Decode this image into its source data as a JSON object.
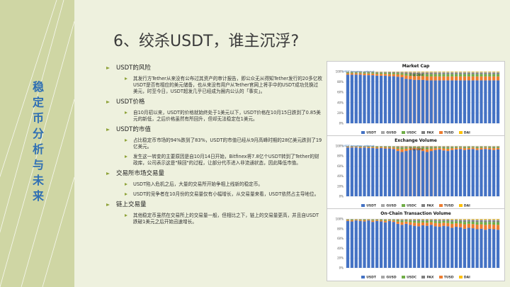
{
  "slide": {
    "title": "6、绞杀USDT，谁主沉浮?",
    "side_title_chars": [
      "稳",
      "定",
      "币",
      "分",
      "析",
      "与",
      "未",
      "来"
    ],
    "accent_color": "#2f6fb3",
    "bullet_color": "#8fa33a"
  },
  "sections": [
    {
      "heading": "USDT的风险",
      "items": [
        "其发行方Tether从来没有公布过其资产的审计报告，即公众无从得知Tether发行的20多亿枚USDT是否有相应的美元储备，也从来没有用户从Tether官网上将手中的USDT成功兑换过美元，时至今日，USDT超发几乎已经成为圈内公认的「事实」。"
      ]
    },
    {
      "heading": "USDT价格",
      "items": [
        "自10月初以来，USDT的价格就始终处于1美元以下，USDT价格在10月15日跌到了0.85美元的新低，之后价格虽然有所回升，但却无法稳定在1美元。"
      ]
    },
    {
      "heading": "USDT的市值",
      "items": [
        "占比稳定币市场的94%跌到了83%，USDT的市值已经从9月高峰时期的28亿美元跌到了19亿美元。",
        "发生这一转变的主要原因是自10月14日开始，Bitfinex将7.8亿个USDT转到了Tether的财政库，公司表示这是\"赎回\"的过程，让部分代币进入非流通状态，因此降低市值。"
      ]
    },
    {
      "heading": "交易所市场交易量",
      "items": [
        "USDT陷入危机之后，大量的交易所开始争相上线新的稳定币。",
        "USDT的竞争者在10月份的交易量仅有小幅增长，从交易量来看，USDT依然占主导地位。"
      ]
    },
    {
      "heading": "链上交易量",
      "items": [
        "其他稳定币虽然在交易所上的交易量一般，但相比之下，链上的交易量更高，并且自USDT跌破1美元之后开始迅速增长。"
      ]
    }
  ],
  "legend": [
    "USDT",
    "GUSD",
    "USDC",
    "PAX",
    "TUSD",
    "DAI"
  ],
  "legend_colors": [
    "#4472c4",
    "#a5a5a5",
    "#70ad47",
    "#7f7f7f",
    "#ed7d31",
    "#ffc000"
  ],
  "panels": [
    {
      "title": "Market Cap",
      "tag": "USDT becomes undercut",
      "event_label": "Flip Date"
    },
    {
      "title": "Exchange Volume",
      "tag": "USDT becomes undercut",
      "event_label": "Flip Date"
    },
    {
      "title": "On-Chain Transaction Volume",
      "tag": "",
      "event_label": ""
    }
  ],
  "chart_data": [
    {
      "type": "bar",
      "title": "Market Cap",
      "series_names": [
        "USDT",
        "GUSD",
        "USDC",
        "PAX",
        "TUSD",
        "DAI"
      ],
      "usdt_share": [
        0.94,
        0.94,
        0.94,
        0.94,
        0.93,
        0.93,
        0.93,
        0.92,
        0.92,
        0.92,
        0.91,
        0.91,
        0.9,
        0.89,
        0.86,
        0.85,
        0.84,
        0.84,
        0.84,
        0.83,
        0.83,
        0.83,
        0.83,
        0.83,
        0.83,
        0.83,
        0.83,
        0.83,
        0.83,
        0.83,
        0.83,
        0.83,
        0.83,
        0.83,
        0.83,
        0.83,
        0.83
      ]
    },
    {
      "type": "bar",
      "title": "Exchange Volume",
      "series_names": [
        "USDT",
        "GUSD",
        "USDC",
        "PAX",
        "TUSD",
        "DAI"
      ],
      "usdt_share": [
        0.97,
        0.97,
        0.97,
        0.96,
        0.97,
        0.96,
        0.96,
        0.95,
        0.96,
        0.95,
        0.95,
        0.94,
        0.9,
        0.88,
        0.9,
        0.92,
        0.93,
        0.92,
        0.9,
        0.88,
        0.9,
        0.92,
        0.93,
        0.91,
        0.9,
        0.92,
        0.93,
        0.94,
        0.92,
        0.93,
        0.94,
        0.92,
        0.93,
        0.94,
        0.93,
        0.92,
        0.93
      ]
    },
    {
      "type": "bar",
      "title": "On-Chain Transaction Volume",
      "series_names": [
        "USDT",
        "GUSD",
        "USDC",
        "PAX",
        "TUSD",
        "DAI"
      ],
      "usdt_share": [
        0.96,
        0.95,
        0.97,
        0.96,
        0.95,
        0.97,
        0.94,
        0.96,
        0.95,
        0.93,
        0.96,
        0.94,
        0.9,
        0.88,
        0.9,
        0.88,
        0.86,
        0.85,
        0.87,
        0.86,
        0.88,
        0.85,
        0.84,
        0.86,
        0.85,
        0.82,
        0.84,
        0.83,
        0.8,
        0.82,
        0.81,
        0.79,
        0.8,
        0.78,
        0.8,
        0.79,
        0.78
      ]
    }
  ]
}
